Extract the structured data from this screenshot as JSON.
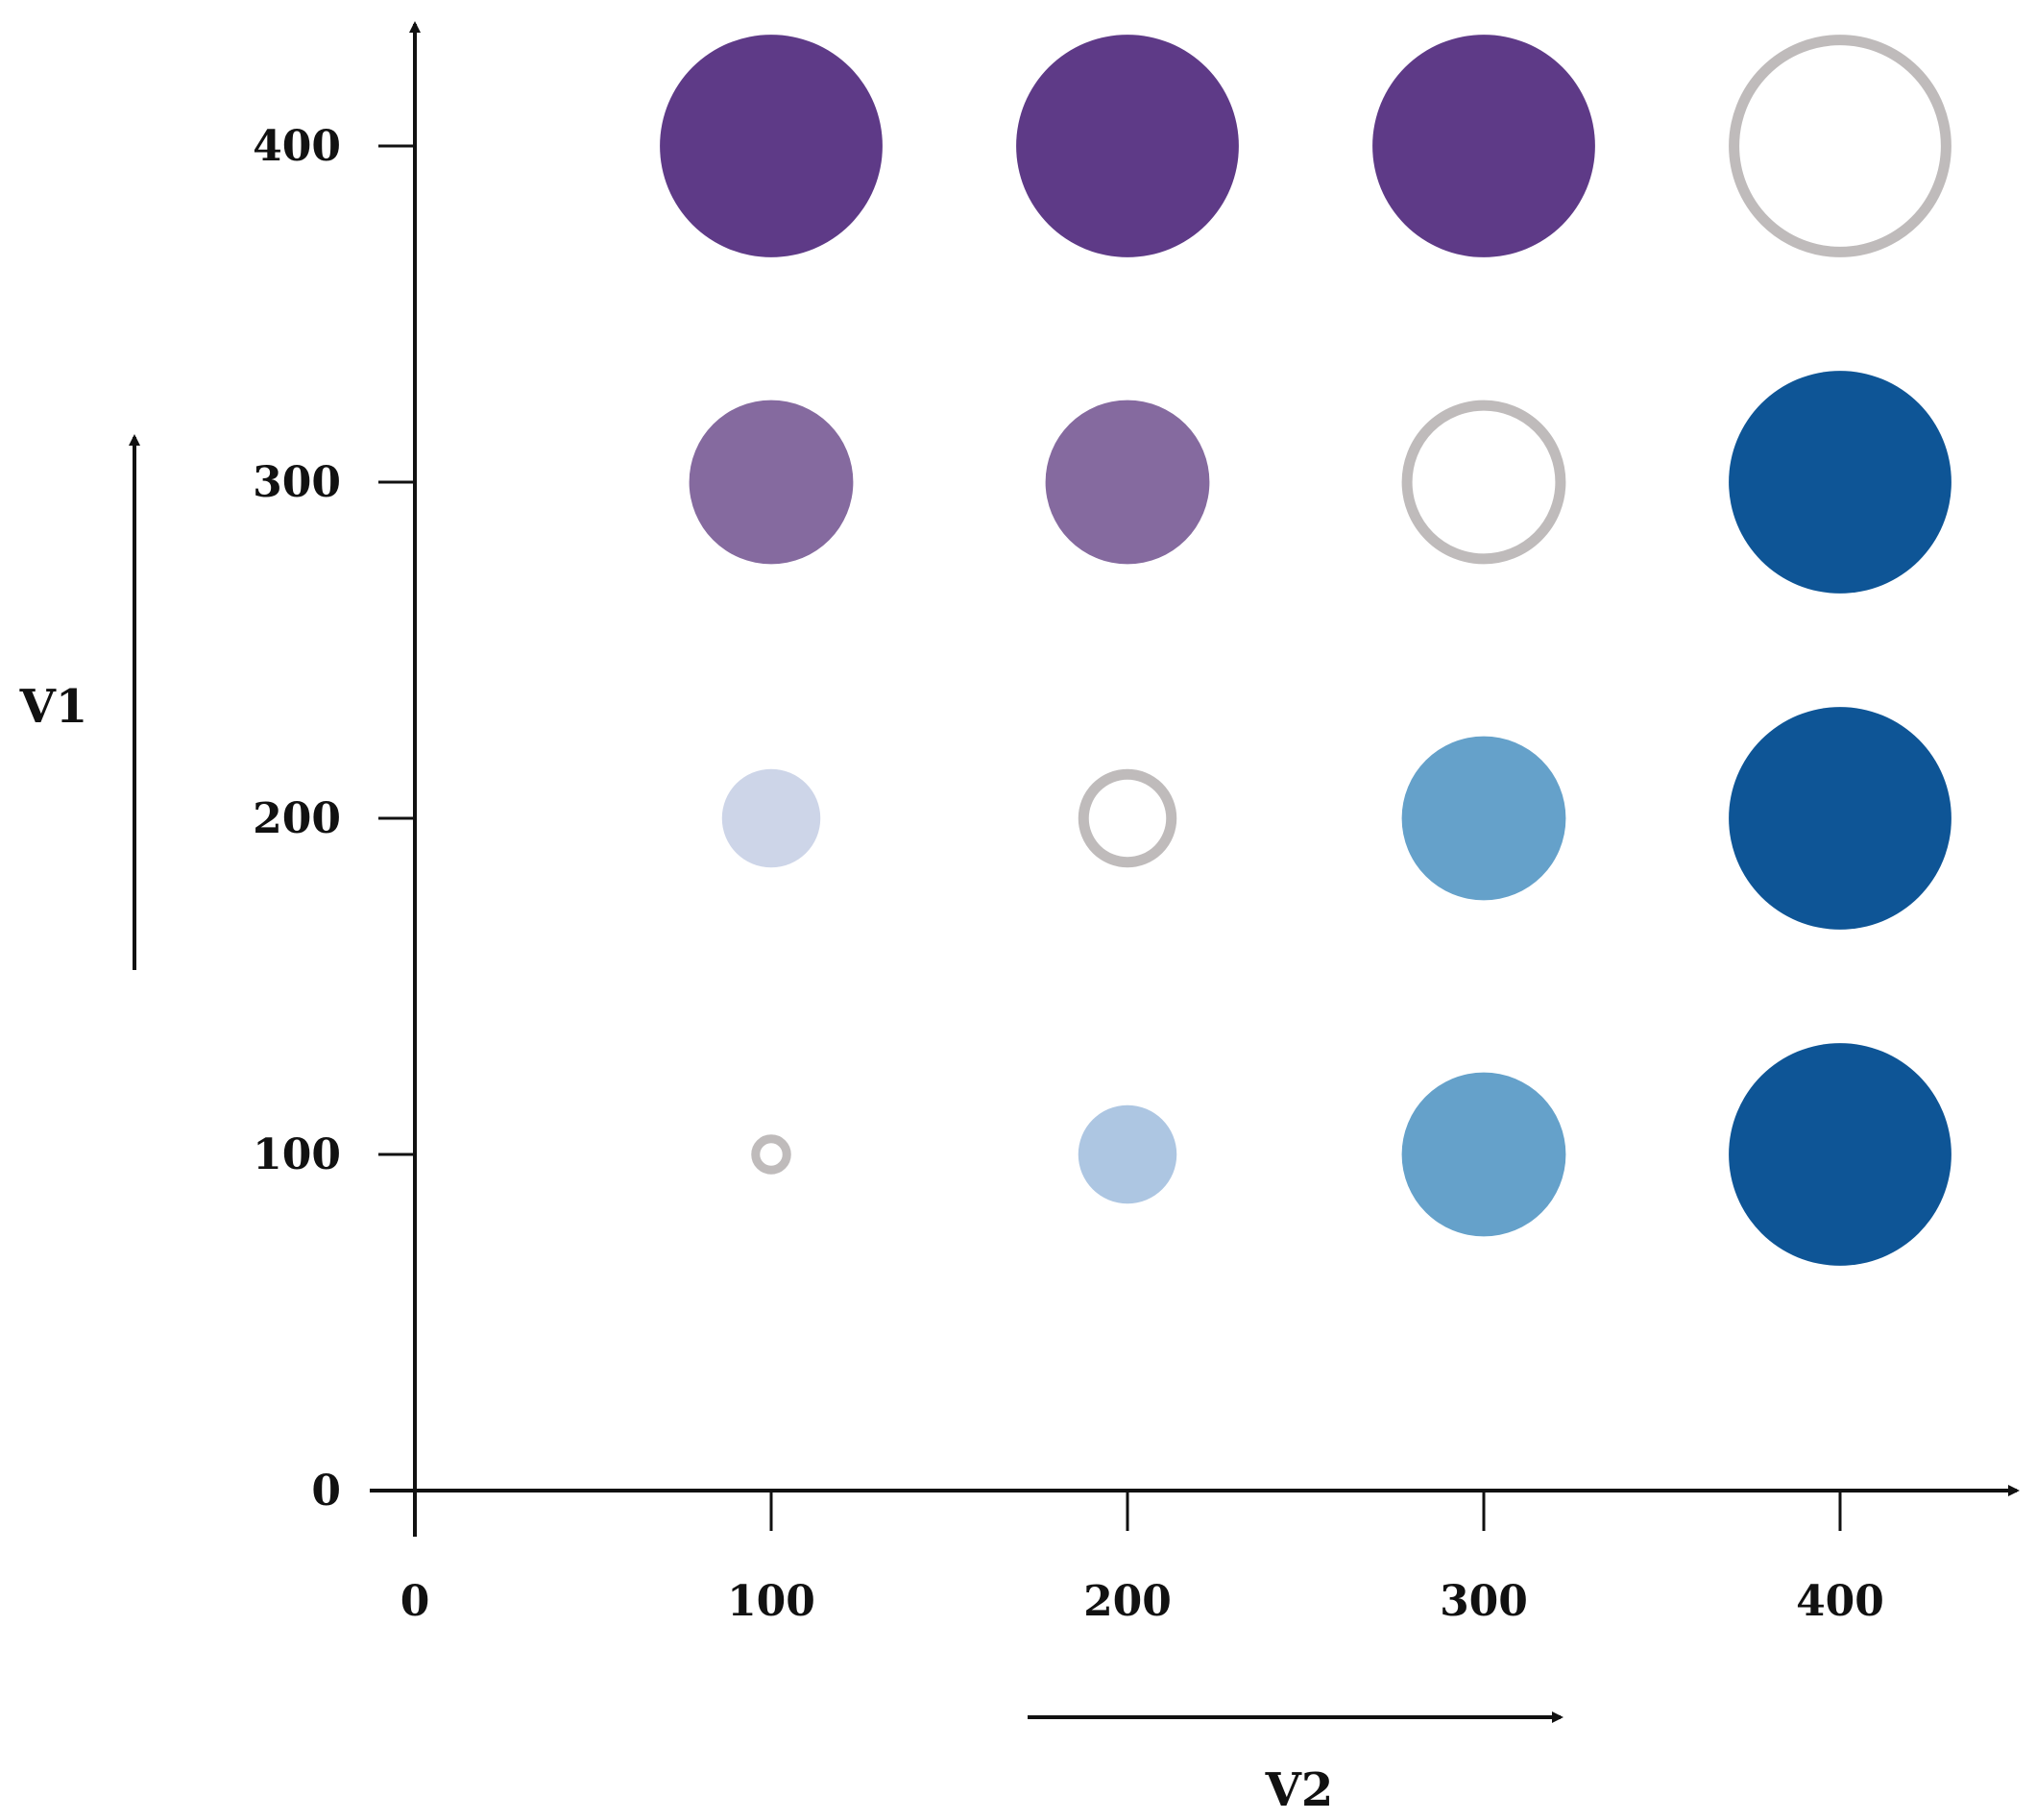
{
  "chart_data": {
    "type": "scatter",
    "title": "",
    "xlabel": "V2",
    "ylabel": "V1",
    "xlim": [
      0,
      440
    ],
    "ylim": [
      0,
      440
    ],
    "x_ticks": [
      0,
      100,
      200,
      300,
      400
    ],
    "y_ticks": [
      0,
      100,
      200,
      300,
      400
    ],
    "x_tick_labels": [
      "0",
      "100",
      "200",
      "300",
      "400"
    ],
    "y_tick_labels": [
      "0",
      "100",
      "200",
      "300",
      "400"
    ],
    "grid": false,
    "legend": "none",
    "points": [
      {
        "x": 100,
        "y": 400,
        "size": 0.95,
        "style": "filled",
        "color": "#5e3a87"
      },
      {
        "x": 200,
        "y": 400,
        "size": 0.95,
        "style": "filled",
        "color": "#5e3a87"
      },
      {
        "x": 300,
        "y": 400,
        "size": 0.95,
        "style": "filled",
        "color": "#5e3a87"
      },
      {
        "x": 400,
        "y": 400,
        "size": 0.95,
        "style": "ring",
        "color": "#bfbbbb"
      },
      {
        "x": 100,
        "y": 300,
        "size": 0.7,
        "style": "filled",
        "color": "#856a9f"
      },
      {
        "x": 200,
        "y": 300,
        "size": 0.7,
        "style": "filled",
        "color": "#856a9f"
      },
      {
        "x": 300,
        "y": 300,
        "size": 0.7,
        "style": "ring",
        "color": "#bfbbbb"
      },
      {
        "x": 400,
        "y": 300,
        "size": 0.95,
        "style": "filled",
        "color": "#0e5596"
      },
      {
        "x": 100,
        "y": 200,
        "size": 0.42,
        "style": "filled",
        "color": "#cdd5e8"
      },
      {
        "x": 200,
        "y": 200,
        "size": 0.42,
        "style": "ring",
        "color": "#bfbbbb"
      },
      {
        "x": 300,
        "y": 200,
        "size": 0.7,
        "style": "filled",
        "color": "#65a1ca"
      },
      {
        "x": 400,
        "y": 200,
        "size": 0.95,
        "style": "filled",
        "color": "#0e5596"
      },
      {
        "x": 100,
        "y": 100,
        "size": 0.17,
        "style": "ring",
        "color": "#bfbbbb"
      },
      {
        "x": 200,
        "y": 100,
        "size": 0.42,
        "style": "filled",
        "color": "#adc6e2"
      },
      {
        "x": 300,
        "y": 100,
        "size": 0.7,
        "style": "filled",
        "color": "#65a1ca"
      },
      {
        "x": 400,
        "y": 100,
        "size": 0.95,
        "style": "filled",
        "color": "#0e5596"
      }
    ]
  }
}
